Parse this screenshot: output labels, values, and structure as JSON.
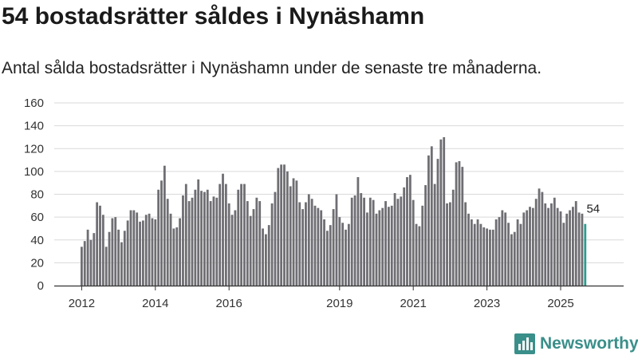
{
  "title": "54 bostadsrätter såldes i Nynäshamn",
  "subtitle": "Antal sålda bostadsrätter i Nynäshamn under de senaste tre månaderna.",
  "brand": {
    "name": "Newsworthy",
    "logo_icon": "newsworthy-bar-logo-icon"
  },
  "colors": {
    "bar": "#6e6e73",
    "highlight": "#2a9d8f",
    "grid": "#d9d9d9",
    "axis": "#333333",
    "brand": "#3a8f8a"
  },
  "chart_data": {
    "type": "bar",
    "title": "54 bostadsrätter såldes i Nynäshamn",
    "subtitle": "Antal sålda bostadsrätter i Nynäshamn under de senaste tre månaderna.",
    "xlabel": "",
    "ylabel": "",
    "ylim": [
      0,
      160
    ],
    "yticks": [
      0,
      20,
      40,
      60,
      80,
      100,
      120,
      140,
      160
    ],
    "xticks": [
      "2012",
      "2014",
      "2016",
      "2019",
      "2021",
      "2023",
      "2025"
    ],
    "grid": true,
    "legend": false,
    "annotation": "54",
    "highlight_last": true,
    "periods": "monthly 2012-01 to 2025-08",
    "values": [
      34,
      39,
      49,
      40,
      46,
      73,
      70,
      62,
      34,
      47,
      59,
      60,
      49,
      38,
      48,
      57,
      66,
      66,
      64,
      56,
      57,
      62,
      63,
      59,
      58,
      84,
      92,
      105,
      76,
      63,
      50,
      51,
      59,
      79,
      89,
      74,
      77,
      84,
      93,
      83,
      82,
      84,
      74,
      78,
      77,
      89,
      98,
      89,
      72,
      62,
      66,
      84,
      89,
      89,
      74,
      61,
      67,
      77,
      74,
      50,
      45,
      53,
      72,
      82,
      103,
      106,
      106,
      100,
      87,
      94,
      92,
      73,
      67,
      73,
      80,
      76,
      70,
      68,
      66,
      58,
      48,
      53,
      67,
      80,
      60,
      55,
      49,
      54,
      77,
      79,
      95,
      81,
      77,
      64,
      77,
      75,
      63,
      66,
      68,
      74,
      69,
      70,
      81,
      76,
      78,
      86,
      95,
      97,
      75,
      54,
      52,
      70,
      88,
      114,
      122,
      89,
      111,
      128,
      130,
      72,
      73,
      84,
      108,
      109,
      104,
      73,
      63,
      58,
      54,
      58,
      54,
      51,
      50,
      49,
      49,
      58,
      60,
      66,
      64,
      55,
      45,
      47,
      58,
      54,
      64,
      66,
      69,
      68,
      76,
      85,
      82,
      72,
      68,
      72,
      77,
      68,
      65,
      55,
      63,
      66,
      69,
      74,
      64,
      63,
      54
    ]
  }
}
